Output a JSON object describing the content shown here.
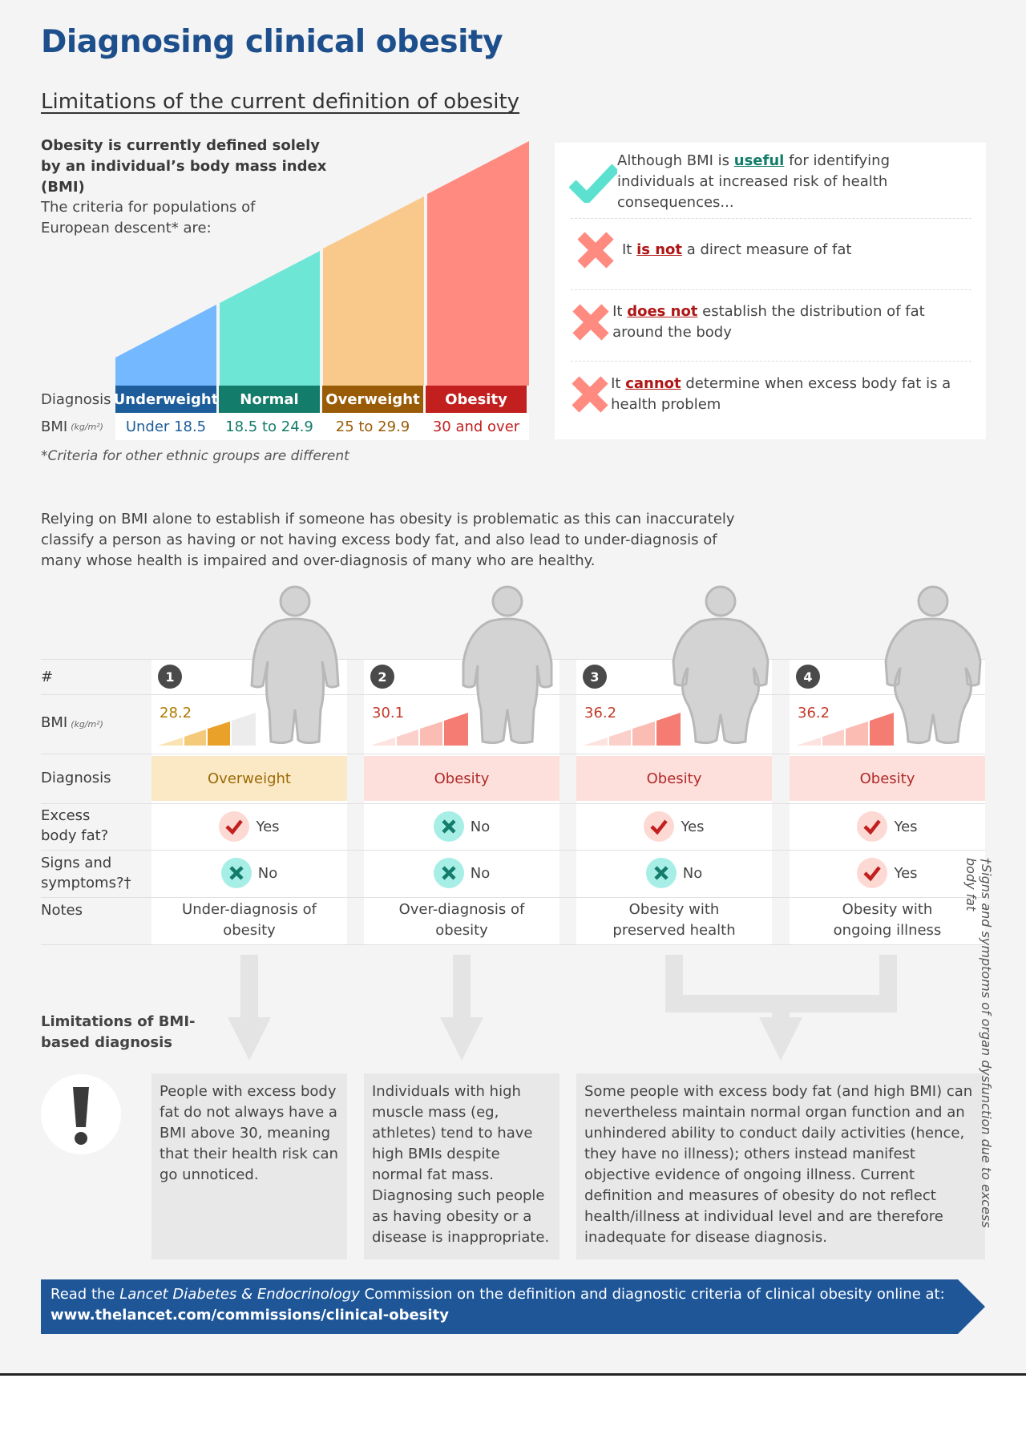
{
  "title": "Diagnosing clinical obesity",
  "subtitle": "Limitations of the current definition of obesity",
  "intro": {
    "line1": "Obesity is currently defined solely by an individual’s body mass index (BMI)",
    "line2": "The criteria for populations of European descent* are:"
  },
  "categories": {
    "diagnosis_label": "Diagnosis",
    "bmi_label": "BMI",
    "bmi_unit": "(kg/m²)",
    "items": [
      {
        "name": "Underweight",
        "range": "Under 18.5",
        "color": "#1d5d9b",
        "bar": "#74b8ff"
      },
      {
        "name": "Normal",
        "range": "18.5 to 24.9",
        "color": "#137c6a",
        "bar": "#6ee6d6"
      },
      {
        "name": "Overweight",
        "range": "25 to 29.9",
        "color": "#9a5b06",
        "bar": "#f8c98b"
      },
      {
        "name": "Obesity",
        "range": "30 and over",
        "color": "#c21f1f",
        "bar": "#ff8a80"
      }
    ],
    "range_colors": [
      "#1d5d9b",
      "#137c6a",
      "#9a5b06",
      "#c21f1f"
    ]
  },
  "footnote": "*Criteria for other ethnic groups are different",
  "panel": {
    "items": [
      {
        "icon": "check-icon",
        "pre": "Although BMI is ",
        "kw": "useful",
        "post": " for identifying individuals at increased risk of health consequences...",
        "kw_color": "#137c6a"
      },
      {
        "icon": "cross-icon",
        "pre": "It ",
        "kw": "is not",
        "post": " a direct measure of fat",
        "kw_color": "#b01515"
      },
      {
        "icon": "cross-icon",
        "pre": "It ",
        "kw": "does not",
        "post": " establish the distribution of fat around the body",
        "kw_color": "#b01515"
      },
      {
        "icon": "cross-icon",
        "pre": "It ",
        "kw": "cannot",
        "post": " determine when excess body fat is a health problem",
        "kw_color": "#b01515"
      }
    ]
  },
  "paragraph": "Relying on BMI alone to establish if someone has obesity is problematic as this can inaccurately classify a person as having or not having excess body fat, and also lead to under-diagnosis of many whose health is impaired and over-diagnosis of many who are healthy.",
  "rows": {
    "num": "#",
    "bmi": "BMI",
    "bmi_unit": "(kg/m²)",
    "diagnosis": "Diagnosis",
    "excess": "Excess body fat?",
    "signs": "Signs and symptoms?†",
    "notes": "Notes"
  },
  "cases": [
    {
      "num": "1",
      "bmi": "28.2",
      "diagnosis": "Overweight",
      "excess": "Yes",
      "signs": "No",
      "note": "Under-diagnosis of obesity",
      "bmi_color": "#b07a00",
      "diag_bg": "#fbe9c6"
    },
    {
      "num": "2",
      "bmi": "30.1",
      "diagnosis": "Obesity",
      "excess": "No",
      "signs": "No",
      "note": "Over-diagnosis of obesity",
      "bmi_color": "#c23b2b",
      "diag_bg": "#fde0dc"
    },
    {
      "num": "3",
      "bmi": "36.2",
      "diagnosis": "Obesity",
      "excess": "Yes",
      "signs": "No",
      "note": "Obesity with preserved health",
      "bmi_color": "#c23b2b",
      "diag_bg": "#fde0dc"
    },
    {
      "num": "4",
      "bmi": "36.2",
      "diagnosis": "Obesity",
      "excess": "Yes",
      "signs": "Yes",
      "note": "Obesity with ongoing illness",
      "bmi_color": "#c23b2b",
      "diag_bg": "#fde0dc"
    }
  ],
  "yes_label": "Yes",
  "no_label": "No",
  "limitations": {
    "title": "Limitations of BMI-based diagnosis",
    "box1": "People with excess body fat do not always have a BMI above 30, meaning that their health risk can go unnoticed.",
    "box2": "Individuals with high muscle mass (eg, athletes) tend to have high BMIs despite normal fat mass. Diagnosing such people as having obesity or a disease is inappropriate.",
    "box3": "Some people with excess body fat (and high BMI) can nevertheless maintain normal organ function and an unhindered ability to conduct daily activities (hence, they have no illness); others instead manifest objective evidence of ongoing illness. Current definition and measures of obesity do not reflect health/illness at individual level and are therefore inadequate for disease diagnosis."
  },
  "banner": {
    "pre": "Read the ",
    "journal": "Lancet Diabetes & Endocrinology",
    "mid": " Commission on the definition and diagnostic criteria of clinical obesity online at: ",
    "url": "www.thelancet.com/commissions/clinical-obesity"
  },
  "side_note": "†Signs and symptoms of organ dysfunction due to excess body fat",
  "colors": {
    "brand": "#1d4f8c",
    "banner": "#1e5698"
  }
}
